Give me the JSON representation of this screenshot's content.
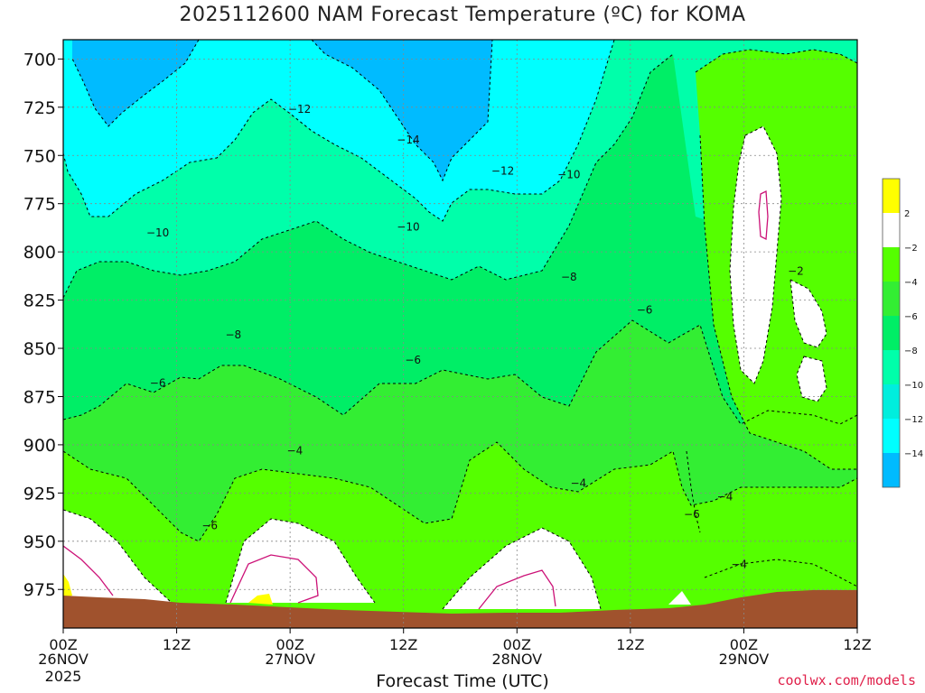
{
  "chart_data": {
    "type": "heatmap",
    "title": "2025112600 NAM Forecast Temperature (ºC) for KOMA",
    "xlabel": "Forecast Time (UTC)",
    "credit": "coolwx.com/models",
    "x_ticks": [
      {
        "hour": 0,
        "label": "00Z",
        "sub": "26NOV",
        "sub2": "2025"
      },
      {
        "hour": 12,
        "label": "12Z",
        "sub": "",
        "sub2": ""
      },
      {
        "hour": 24,
        "label": "00Z",
        "sub": "27NOV",
        "sub2": ""
      },
      {
        "hour": 36,
        "label": "12Z",
        "sub": "",
        "sub2": ""
      },
      {
        "hour": 48,
        "label": "00Z",
        "sub": "28NOV",
        "sub2": ""
      },
      {
        "hour": 60,
        "label": "12Z",
        "sub": "",
        "sub2": ""
      },
      {
        "hour": 72,
        "label": "00Z",
        "sub": "29NOV",
        "sub2": ""
      },
      {
        "hour": 84,
        "label": "12Z",
        "sub": "",
        "sub2": ""
      }
    ],
    "xlim": [
      0,
      84
    ],
    "y_ticks": [
      700,
      725,
      750,
      775,
      800,
      825,
      850,
      875,
      900,
      925,
      950,
      975
    ],
    "ylim": [
      690,
      995
    ],
    "legend": {
      "labels": [
        "2",
        "-2",
        "-4",
        "-6",
        "-8",
        "-10",
        "-12",
        "-14"
      ],
      "colors": [
        "#ffffff",
        "#ffff00",
        "#ffffff",
        "#55ff00",
        "#33ee33",
        "#00ee66",
        "#00ffaa",
        "#00eedd",
        "#00ffff",
        "#00bbff"
      ],
      "placement": "right"
    },
    "contour_labels": [
      {
        "text": "-12",
        "h": 25,
        "p": 726
      },
      {
        "text": "-14",
        "h": 36.5,
        "p": 742
      },
      {
        "text": "-12",
        "h": 46.5,
        "p": 758
      },
      {
        "text": "-10",
        "h": 53.5,
        "p": 760
      },
      {
        "text": "-10",
        "h": 10,
        "p": 790
      },
      {
        "text": "-10",
        "h": 36.5,
        "p": 787
      },
      {
        "text": "-8",
        "h": 53.5,
        "p": 813
      },
      {
        "text": "-8",
        "h": 18,
        "p": 843
      },
      {
        "text": "-6",
        "h": 61.5,
        "p": 830
      },
      {
        "text": "-6",
        "h": 37,
        "p": 856
      },
      {
        "text": "-6",
        "h": 10,
        "p": 868
      },
      {
        "text": "-2",
        "h": 77.5,
        "p": 810
      },
      {
        "text": "-4",
        "h": 24.5,
        "p": 903
      },
      {
        "text": "-4",
        "h": 54.5,
        "p": 920
      },
      {
        "text": "-4",
        "h": 70,
        "p": 927
      },
      {
        "text": "-6",
        "h": 15.5,
        "p": 942
      },
      {
        "text": "-6",
        "h": 66.5,
        "p": 936
      },
      {
        "text": "-4",
        "h": 71.5,
        "p": 962
      }
    ]
  }
}
